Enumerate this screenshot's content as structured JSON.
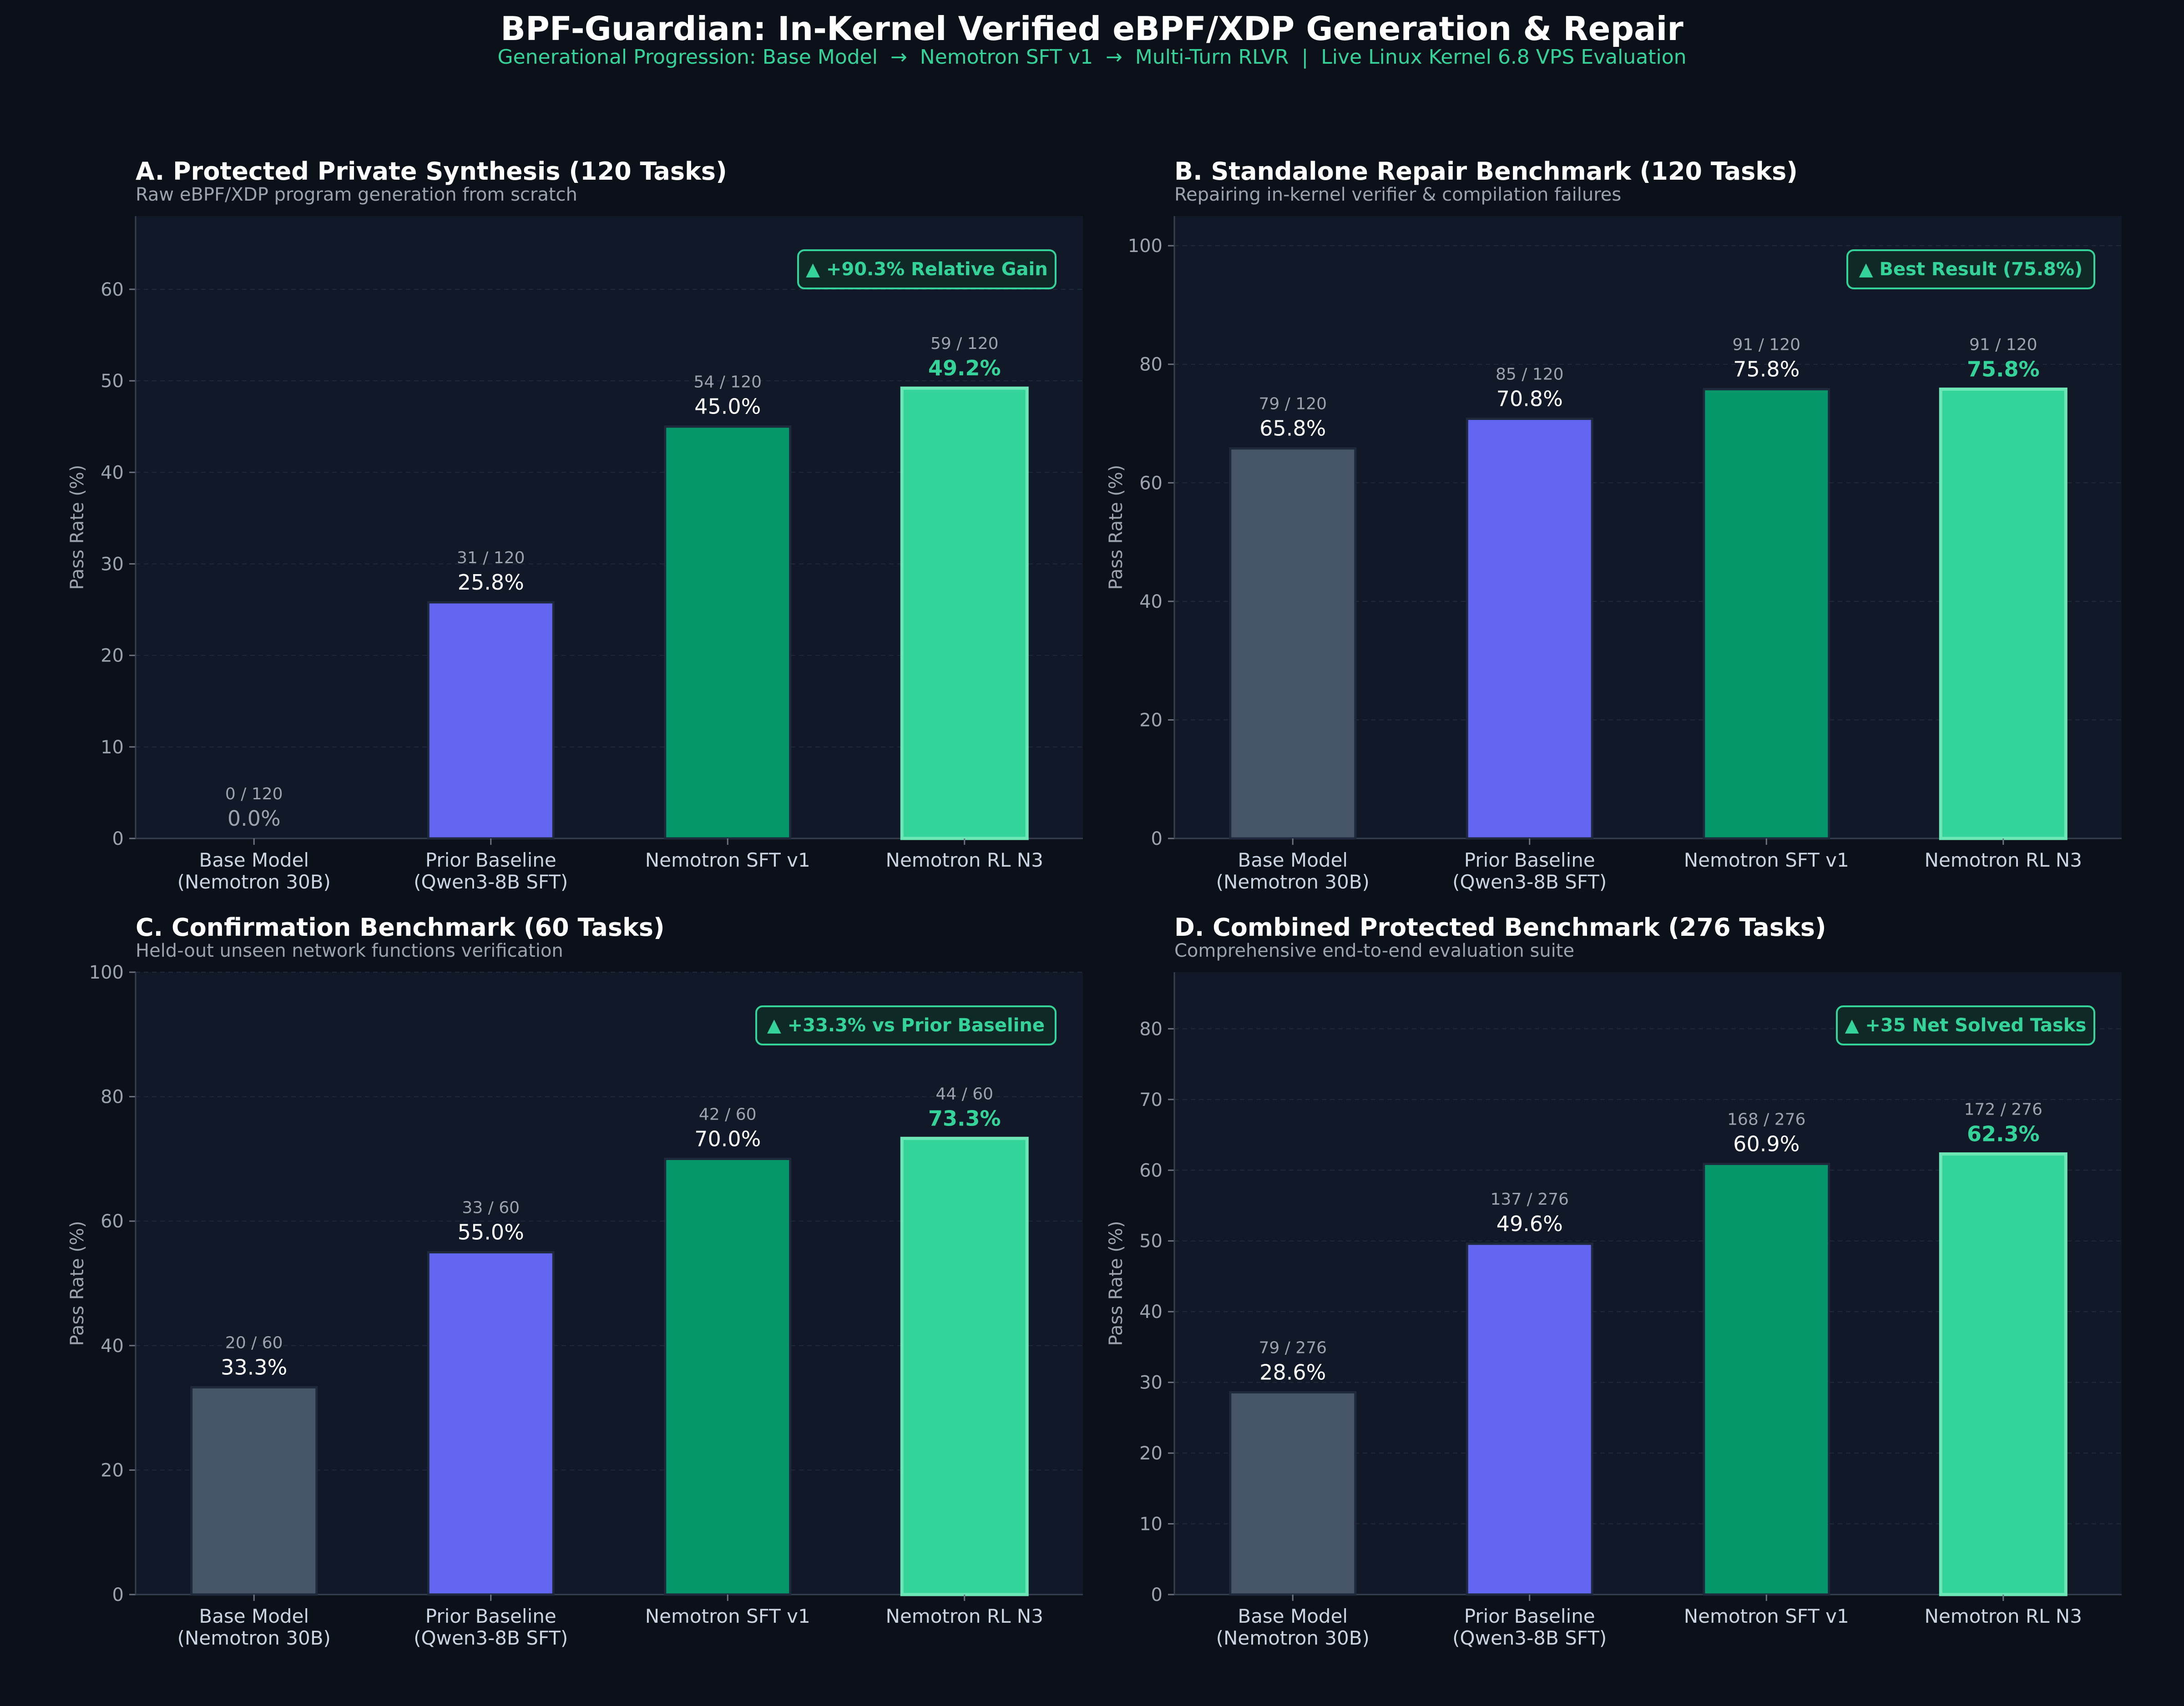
{
  "title": "BPF-Guardian: In-Kernel Verified eBPF/XDP Generation & Repair",
  "subtitle": "Generational Progression: Base Model  →  Nemotron SFT v1  →  Multi-Turn RLVR  |  Live Linux Kernel 6.8 VPS Evaluation",
  "colors": {
    "background": "#0b1019",
    "panel": "#111827",
    "title_text": "#ffffff",
    "subtitle_text": "#34d399",
    "muted_text": "#9ca3af",
    "accent": "#34d399",
    "bar_edge": "#1e293b",
    "highlight_edge": "#6ee7b7"
  },
  "bar_colors": [
    "#475569",
    "#6366f1",
    "#059669",
    "#34d399"
  ],
  "chart_data": [
    {
      "type": "bar",
      "title": "A. Protected Private Synthesis (120 Tasks)",
      "subtitle": "Raw eBPF/XDP program generation from scratch",
      "ylabel": "Pass Rate (%)",
      "ylim": [
        0,
        68
      ],
      "yticks": [
        0,
        10,
        20,
        30,
        40,
        50,
        60
      ],
      "categories": [
        "Base Model\n(Nemotron 30B)",
        "Prior Baseline\n(Qwen3-8B SFT)",
        "Nemotron SFT v1",
        "Nemotron RL N3"
      ],
      "values": [
        0.0,
        25.8,
        45.0,
        49.2
      ],
      "value_labels": [
        "0.0%",
        "25.8%",
        "45.0%",
        "49.2%"
      ],
      "count_labels": [
        "0 / 120",
        "31 / 120",
        "54 / 120",
        "59 / 120"
      ],
      "badge": "▲ +90.3% Relative Gain",
      "grid": true
    },
    {
      "type": "bar",
      "title": "B. Standalone Repair Benchmark (120 Tasks)",
      "subtitle": "Repairing in-kernel verifier & compilation failures",
      "ylabel": "Pass Rate (%)",
      "ylim": [
        0,
        105
      ],
      "yticks": [
        0,
        20,
        40,
        60,
        80,
        100
      ],
      "categories": [
        "Base Model\n(Nemotron 30B)",
        "Prior Baseline\n(Qwen3-8B SFT)",
        "Nemotron SFT v1",
        "Nemotron RL N3"
      ],
      "values": [
        65.8,
        70.8,
        75.8,
        75.8
      ],
      "value_labels": [
        "65.8%",
        "70.8%",
        "75.8%",
        "75.8%"
      ],
      "count_labels": [
        "79 / 120",
        "85 / 120",
        "91 / 120",
        "91 / 120"
      ],
      "badge": "▲ Best Result (75.8%)",
      "grid": true
    },
    {
      "type": "bar",
      "title": "C. Confirmation Benchmark (60 Tasks)",
      "subtitle": "Held-out unseen network functions verification",
      "ylabel": "Pass Rate (%)",
      "ylim": [
        0,
        100
      ],
      "yticks": [
        0,
        20,
        40,
        60,
        80,
        100
      ],
      "categories": [
        "Base Model\n(Nemotron 30B)",
        "Prior Baseline\n(Qwen3-8B SFT)",
        "Nemotron SFT v1",
        "Nemotron RL N3"
      ],
      "values": [
        33.3,
        55.0,
        70.0,
        73.3
      ],
      "value_labels": [
        "33.3%",
        "55.0%",
        "70.0%",
        "73.3%"
      ],
      "count_labels": [
        "20 / 60",
        "33 / 60",
        "42 / 60",
        "44 / 60"
      ],
      "badge": "▲ +33.3% vs Prior Baseline",
      "grid": true
    },
    {
      "type": "bar",
      "title": "D. Combined Protected Benchmark (276 Tasks)",
      "subtitle": "Comprehensive end-to-end evaluation suite",
      "ylabel": "Pass Rate (%)",
      "ylim": [
        0,
        88
      ],
      "yticks": [
        0,
        10,
        20,
        30,
        40,
        50,
        60,
        70,
        80
      ],
      "categories": [
        "Base Model\n(Nemotron 30B)",
        "Prior Baseline\n(Qwen3-8B SFT)",
        "Nemotron SFT v1",
        "Nemotron RL N3"
      ],
      "values": [
        28.6,
        49.6,
        60.9,
        62.3
      ],
      "value_labels": [
        "28.6%",
        "49.6%",
        "60.9%",
        "62.3%"
      ],
      "count_labels": [
        "79 / 276",
        "137 / 276",
        "168 / 276",
        "172 / 276"
      ],
      "badge": "▲ +35 Net Solved Tasks",
      "grid": true
    }
  ]
}
